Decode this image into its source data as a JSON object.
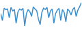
{
  "chart_data": {
    "type": "line",
    "color": "#3a8fd0",
    "x": [
      0,
      1,
      2,
      3,
      4,
      5,
      6,
      7,
      8,
      9,
      10,
      11,
      12,
      13,
      14,
      15,
      16,
      17,
      18,
      19,
      20,
      21,
      22,
      23,
      24,
      25,
      26,
      27,
      28,
      29,
      30,
      31,
      32,
      33,
      34,
      35,
      36,
      37,
      38,
      39,
      40,
      41,
      42,
      43,
      44,
      45,
      46,
      47
    ],
    "values": [
      55,
      30,
      75,
      70,
      72,
      40,
      78,
      65,
      70,
      20,
      60,
      72,
      68,
      74,
      10,
      55,
      70,
      62,
      45,
      80,
      72,
      66,
      35,
      15,
      60,
      75,
      70,
      78,
      40,
      65,
      72,
      20,
      55,
      68,
      74,
      30,
      70,
      60,
      25,
      72,
      65,
      50,
      70,
      78,
      45,
      68,
      80,
      95
    ],
    "xlim": [
      0,
      47
    ],
    "ylim": [
      0,
      100
    ],
    "grid": false,
    "tick_labels": false
  }
}
